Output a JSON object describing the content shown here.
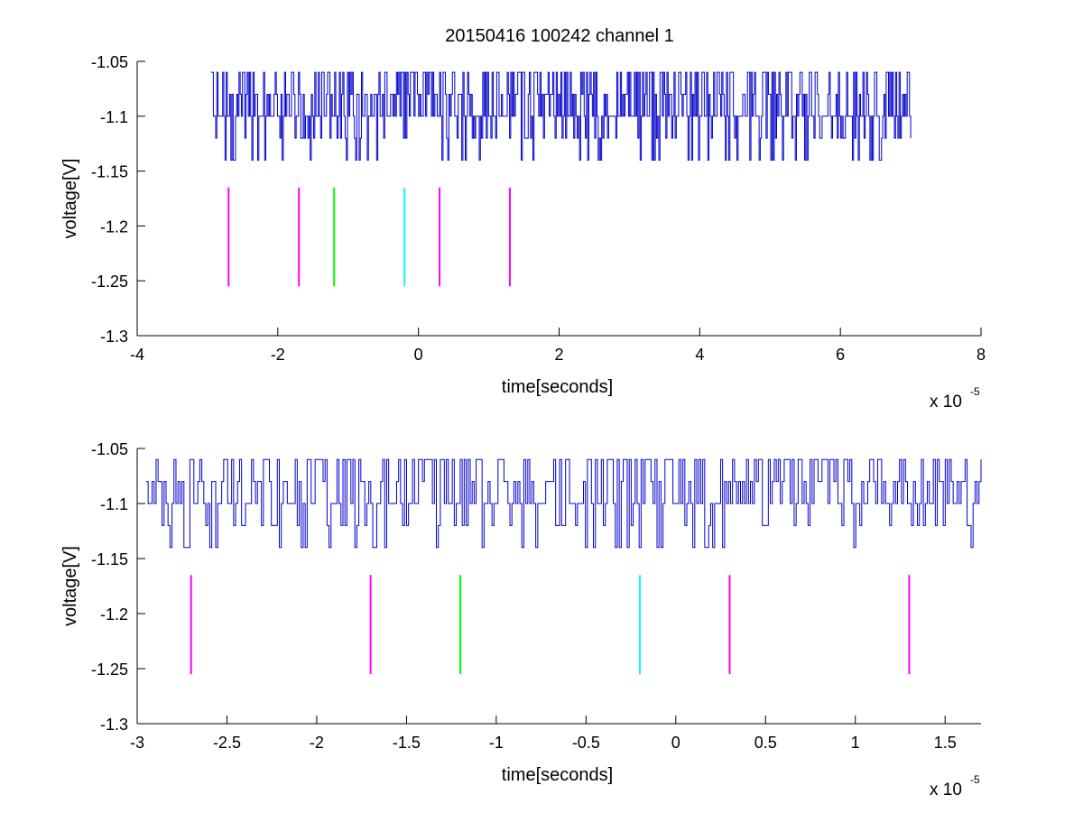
{
  "title": "20150416 100242 channel 1",
  "chart_data": [
    {
      "type": "line",
      "title": "20150416 100242 channel 1",
      "xlabel": "time[seconds]",
      "ylabel": "voltage[V]",
      "x_scale_label": "x 10",
      "x_scale_exponent": "-5",
      "xlim": [
        -4,
        8
      ],
      "ylim": [
        -1.3,
        -1.05
      ],
      "x_ticks": [
        -4,
        -2,
        0,
        2,
        4,
        6,
        8
      ],
      "x_tick_labels": [
        "-4",
        "-2",
        "0",
        "2",
        "4",
        "6",
        "8"
      ],
      "y_ticks": [
        -1.05,
        -1.1,
        -1.15,
        -1.2,
        -1.25,
        -1.3
      ],
      "y_tick_labels": [
        "-1.05",
        "-1.1",
        "-1.15",
        "-1.2",
        "-1.25",
        "-1.3"
      ],
      "grid": false,
      "signal": {
        "x_range": [
          -2.95,
          7.0
        ],
        "levels": [
          -1.06,
          -1.08,
          -1.1,
          -1.12,
          -1.14
        ],
        "color": "#0000cc",
        "description_of_shape": "noisy quantized trace fluctuating between -1.06 and -1.14 V"
      },
      "markers": [
        {
          "x": -2.7,
          "color": "#ff00ff"
        },
        {
          "x": -1.7,
          "color": "#ff00ff"
        },
        {
          "x": -1.2,
          "color": "#00ff00"
        },
        {
          "x": -0.2,
          "color": "#00ffff"
        },
        {
          "x": 0.3,
          "color": "#ff00ff"
        },
        {
          "x": 1.3,
          "color": "#ff00ff"
        }
      ],
      "marker_y_range": [
        -1.255,
        -1.165
      ]
    },
    {
      "type": "line",
      "xlabel": "time[seconds]",
      "ylabel": "voltage[V]",
      "x_scale_label": "x 10",
      "x_scale_exponent": "-5",
      "xlim": [
        -3.0,
        1.7
      ],
      "ylim": [
        -1.3,
        -1.05
      ],
      "x_ticks": [
        -3,
        -2.5,
        -2,
        -1.5,
        -1,
        -0.5,
        0,
        0.5,
        1,
        1.5
      ],
      "x_tick_labels": [
        "-3",
        "-2.5",
        "-2",
        "-1.5",
        "-1",
        "-0.5",
        "0",
        "0.5",
        "1",
        "1.5"
      ],
      "y_ticks": [
        -1.05,
        -1.1,
        -1.15,
        -1.2,
        -1.25,
        -1.3
      ],
      "y_tick_labels": [
        "-1.05",
        "-1.1",
        "-1.15",
        "-1.2",
        "-1.25",
        "-1.3"
      ],
      "grid": false,
      "signal": {
        "x_range": [
          -2.95,
          1.7
        ],
        "levels": [
          -1.06,
          -1.08,
          -1.1,
          -1.12,
          -1.14
        ],
        "color": "#0000cc",
        "description_of_shape": "noisy quantized trace fluctuating between -1.06 and -1.14 V (zoom of upper plot)"
      },
      "markers": [
        {
          "x": -2.7,
          "color": "#ff00ff"
        },
        {
          "x": -1.7,
          "color": "#ff00ff"
        },
        {
          "x": -1.2,
          "color": "#00ff00"
        },
        {
          "x": -0.2,
          "color": "#00ffff"
        },
        {
          "x": 0.3,
          "color": "#ff00ff"
        },
        {
          "x": 1.3,
          "color": "#ff00ff"
        }
      ],
      "marker_y_range": [
        -1.255,
        -1.165
      ]
    }
  ]
}
